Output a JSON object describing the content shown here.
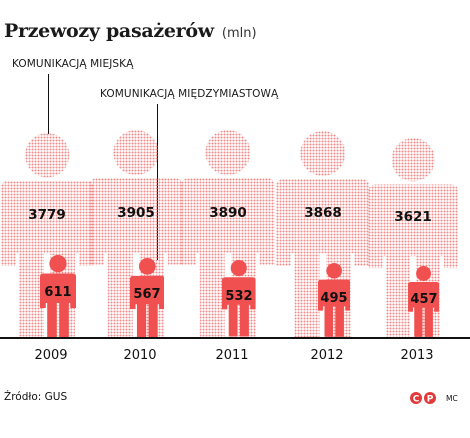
{
  "title": "Przewozy pasażerów",
  "title_unit": "(mln)",
  "source": "Źródło: GUS",
  "credit": "MC",
  "logo_icon": "cp-logo-icon",
  "colors": {
    "urban": "#f08a8a",
    "intercity": "#f05050",
    "text": "#111111"
  },
  "chart_data": {
    "type": "bar",
    "categories": [
      "2009",
      "2010",
      "2011",
      "2012",
      "2013"
    ],
    "series": [
      {
        "name": "KOMUNIKACJĄ MIEJSKĄ",
        "values": [
          3779,
          3905,
          3890,
          3868,
          3621
        ]
      },
      {
        "name": "KOMUNIKACJĄ MIĘDZYMIASTOWĄ",
        "values": [
          611,
          567,
          532,
          495,
          457
        ]
      }
    ],
    "value_labels": {
      "urban": [
        "3779",
        "3905",
        "3890",
        "3868",
        "3621"
      ],
      "intercity": [
        "611",
        "567",
        "532",
        "495",
        "457"
      ]
    },
    "title": "Przewozy pasażerów",
    "xlabel": "",
    "ylabel": "",
    "grid": false,
    "legend": "top-left annotations"
  }
}
